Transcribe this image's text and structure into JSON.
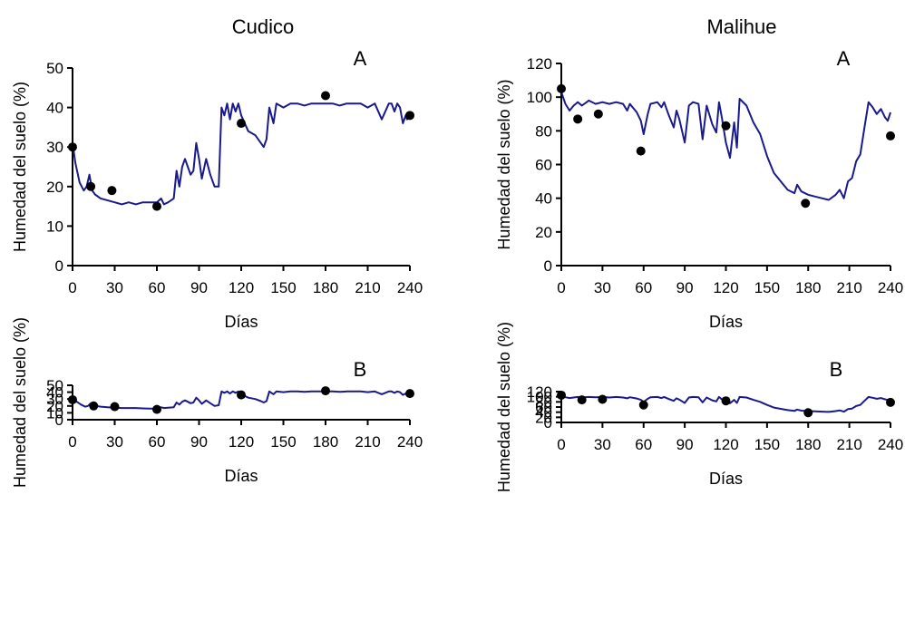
{
  "headers": {
    "left": "Cudico",
    "right": "Malihue"
  },
  "colors": {
    "line": "#1a1a8c",
    "points": "#000000",
    "axis": "#000000"
  },
  "chart_data": [
    {
      "type": "line",
      "id": "cudico-a",
      "panel_label": "A",
      "xlabel": "Días",
      "ylabel": "Humedad del suelo (%)",
      "xlim": [
        0,
        240
      ],
      "ylim": [
        0,
        50
      ],
      "xticks": [
        0,
        30,
        60,
        90,
        120,
        150,
        180,
        210,
        240
      ],
      "yticks": [
        0,
        10,
        20,
        30,
        40,
        50
      ],
      "line": {
        "x": [
          0,
          2,
          5,
          8,
          10,
          12,
          14,
          16,
          20,
          25,
          30,
          35,
          40,
          45,
          50,
          55,
          60,
          63,
          65,
          68,
          72,
          74,
          76,
          78,
          80,
          82,
          84,
          86,
          88,
          90,
          92,
          95,
          98,
          101,
          104,
          106,
          108,
          110,
          112,
          114,
          116,
          118,
          120,
          125,
          130,
          134,
          136,
          138,
          140,
          143,
          145,
          150,
          155,
          160,
          165,
          170,
          175,
          180,
          185,
          190,
          195,
          200,
          205,
          210,
          215,
          220,
          225,
          227,
          229,
          231,
          233,
          235,
          237,
          238,
          240
        ],
        "y": [
          31,
          26,
          21,
          19,
          20,
          23,
          19,
          18,
          17,
          16.5,
          16,
          15.5,
          16,
          15.5,
          16,
          16,
          16,
          17,
          15.5,
          16,
          17,
          24,
          20,
          25,
          27,
          25,
          23,
          24,
          31,
          27,
          22,
          27,
          23,
          20,
          20,
          40,
          38,
          41,
          37,
          41,
          39,
          41,
          38,
          34,
          33,
          31,
          30,
          32,
          40,
          36,
          41,
          40,
          41,
          41,
          40.5,
          41,
          41,
          41,
          41,
          40.5,
          41,
          41,
          41,
          40,
          41,
          37,
          41,
          41,
          39,
          41,
          40,
          36,
          38,
          37,
          38
        ]
      },
      "points": {
        "x": [
          0,
          13,
          28,
          60,
          120,
          180,
          240
        ],
        "y": [
          30,
          20,
          19,
          15,
          36,
          43,
          38
        ]
      }
    },
    {
      "type": "line",
      "id": "malihue-a",
      "panel_label": "A",
      "xlabel": "Días",
      "ylabel": "Humedad del suelo (%)",
      "xlim": [
        0,
        240
      ],
      "ylim": [
        0,
        120
      ],
      "xticks": [
        0,
        30,
        60,
        90,
        120,
        150,
        180,
        210,
        240
      ],
      "yticks": [
        0,
        20,
        40,
        60,
        80,
        100,
        120
      ],
      "line": {
        "x": [
          0,
          3,
          6,
          9,
          12,
          15,
          20,
          25,
          30,
          35,
          40,
          45,
          48,
          50,
          55,
          58,
          60,
          63,
          65,
          70,
          73,
          75,
          78,
          82,
          84,
          86,
          90,
          93,
          96,
          100,
          103,
          106,
          110,
          113,
          115,
          117,
          120,
          123,
          126,
          128,
          130,
          135,
          140,
          145,
          150,
          155,
          160,
          165,
          170,
          172,
          175,
          180,
          185,
          190,
          195,
          200,
          203,
          206,
          209,
          212,
          215,
          218,
          221,
          224,
          227,
          230,
          233,
          236,
          238,
          240
        ],
        "y": [
          103,
          96,
          92,
          95,
          97,
          95,
          98,
          96,
          97,
          96,
          97,
          96,
          92,
          96,
          91,
          86,
          78,
          90,
          96,
          97,
          94,
          97,
          90,
          82,
          92,
          87,
          73,
          95,
          97,
          96,
          75,
          95,
          84,
          79,
          97,
          88,
          73,
          64,
          85,
          70,
          99,
          95,
          85,
          78,
          65,
          55,
          50,
          45,
          43,
          48,
          44,
          42,
          41,
          40,
          39,
          42,
          45,
          40,
          50,
          52,
          62,
          66,
          82,
          97,
          94,
          90,
          93,
          88,
          86,
          91
        ]
      },
      "points": {
        "x": [
          0,
          12,
          27,
          58,
          120,
          178,
          240
        ],
        "y": [
          105,
          87,
          90,
          68,
          83,
          37,
          77
        ]
      }
    },
    {
      "type": "line",
      "id": "cudico-b",
      "panel_label": "B",
      "xlabel": "Días",
      "ylabel": "Humedad del suelo (%)",
      "xlim": [
        0,
        240
      ],
      "ylim": [
        0,
        50
      ],
      "xticks": [
        0,
        30,
        60,
        90,
        120,
        150,
        180,
        210,
        240
      ],
      "yticks": [
        0,
        10,
        20,
        30,
        40,
        50
      ],
      "line": {
        "x": [
          0,
          3,
          6,
          9,
          11,
          13,
          15,
          17,
          20,
          25,
          30,
          35,
          40,
          45,
          50,
          55,
          60,
          63,
          65,
          68,
          72,
          74,
          76,
          78,
          80,
          82,
          84,
          86,
          88,
          90,
          92,
          95,
          98,
          101,
          104,
          106,
          108,
          110,
          112,
          114,
          116,
          118,
          120,
          125,
          130,
          134,
          136,
          138,
          140,
          143,
          145,
          150,
          155,
          160,
          165,
          170,
          175,
          180,
          185,
          190,
          195,
          200,
          205,
          210,
          215,
          220,
          225,
          227,
          229,
          231,
          233,
          235,
          237,
          238,
          240
        ],
        "y": [
          30,
          26,
          22,
          19,
          20,
          24,
          21,
          20,
          19,
          18,
          17.5,
          17,
          17,
          17,
          16.5,
          16,
          16,
          18,
          17,
          17.5,
          18,
          25,
          22,
          26,
          28,
          26,
          24,
          25,
          32,
          28,
          23,
          28,
          24,
          20,
          21,
          41,
          39,
          41,
          38,
          41,
          39,
          41,
          37,
          32,
          30,
          27,
          25,
          27,
          41,
          37,
          41,
          40,
          41,
          41,
          40.5,
          41,
          41,
          41,
          41,
          40.5,
          41,
          41,
          41,
          40,
          41,
          37,
          41,
          41,
          39,
          41,
          40,
          36,
          38,
          35,
          35
        ]
      },
      "points": {
        "x": [
          0,
          15,
          30,
          60,
          120,
          180,
          240
        ],
        "y": [
          29,
          20,
          19,
          15,
          36,
          42,
          38
        ]
      }
    },
    {
      "type": "line",
      "id": "malihue-b",
      "panel_label": "B",
      "xlabel": "Días",
      "ylabel": "Humedad del suelo (%)",
      "xlim": [
        0,
        240
      ],
      "ylim": [
        0,
        120
      ],
      "xticks": [
        0,
        30,
        60,
        90,
        120,
        150,
        180,
        210,
        240
      ],
      "yticks": [
        0,
        20,
        40,
        60,
        80,
        100,
        120
      ],
      "line": {
        "x": [
          0,
          3,
          6,
          9,
          12,
          15,
          20,
          25,
          30,
          35,
          40,
          45,
          48,
          50,
          55,
          58,
          60,
          63,
          65,
          70,
          73,
          75,
          78,
          82,
          84,
          86,
          90,
          93,
          96,
          100,
          103,
          106,
          110,
          113,
          115,
          117,
          120,
          123,
          126,
          128,
          130,
          135,
          140,
          145,
          150,
          155,
          160,
          165,
          170,
          172,
          175,
          180,
          185,
          190,
          195,
          200,
          203,
          206,
          209,
          212,
          215,
          218,
          221,
          224,
          227,
          230,
          233,
          236,
          238,
          240
        ],
        "y": [
          104,
          98,
          95,
          97,
          99,
          97,
          99,
          98,
          99,
          97,
          99,
          97,
          94,
          98,
          93,
          88,
          80,
          92,
          98,
          99,
          95,
          99,
          92,
          84,
          94,
          89,
          76,
          97,
          99,
          98,
          78,
          97,
          86,
          82,
          99,
          90,
          77,
          75,
          88,
          76,
          99,
          97,
          88,
          80,
          68,
          58,
          53,
          48,
          45,
          50,
          46,
          44,
          43,
          42,
          41,
          44,
          47,
          42,
          52,
          54,
          64,
          68,
          84,
          99,
          96,
          92,
          95,
          90,
          88,
          93
        ]
      },
      "points": {
        "x": [
          0,
          15,
          30,
          60,
          120,
          180,
          240
        ],
        "y": [
          106,
          88,
          90,
          68,
          84,
          38,
          78
        ]
      }
    }
  ]
}
